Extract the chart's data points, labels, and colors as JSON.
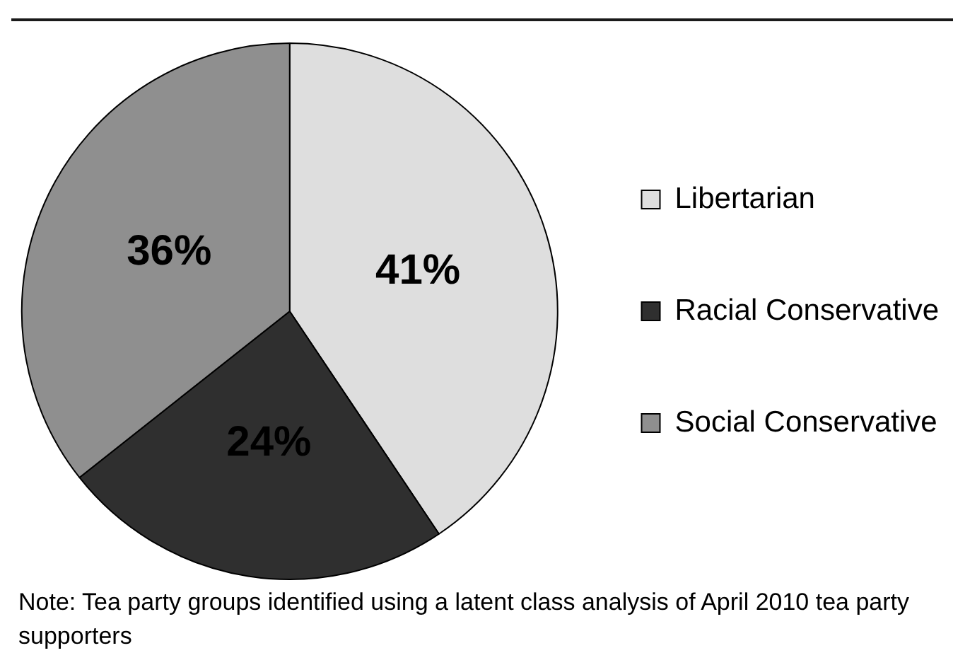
{
  "chart_data": {
    "type": "pie",
    "categories": [
      "Libertarian",
      "Racial Conservative",
      "Social Conservative"
    ],
    "values": [
      41,
      24,
      36
    ],
    "colors": [
      "#dedede",
      "#2f2f2f",
      "#8f8f8f"
    ],
    "value_labels": [
      "41%",
      "24%",
      "36%"
    ],
    "legend": "right",
    "annotations": [
      "Note: Tea party groups identified using a latent class analysis of April 2010 tea party supporters"
    ]
  }
}
